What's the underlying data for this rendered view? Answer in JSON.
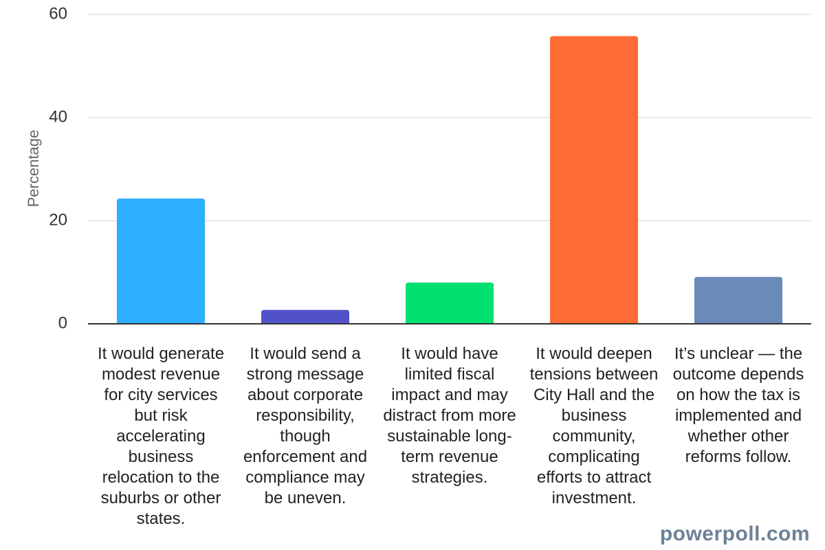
{
  "chart_data": {
    "type": "bar",
    "ylabel": "Percentage",
    "ylim": [
      0,
      60
    ],
    "yticks": [
      "0",
      "20",
      "40",
      "60"
    ],
    "grid": true,
    "categories": [
      "It would generate modest revenue for city services but risk accelerating business relocation to the suburbs or other states.",
      "It would send a strong message about corporate responsibility, though enforcement and compliance may be uneven.",
      "It would have limited fiscal impact and may distract from more sustainable long-term revenue strategies.",
      "It would deepen tensions between City Hall and the business community, complicating efforts to attract investment.",
      "It’s unclear — the outcome depends on how the tax is implemented and whether other reforms follow."
    ],
    "values": [
      24.3,
      2.7,
      8.0,
      55.8,
      9.1
    ],
    "colors": [
      "#2eaeff",
      "#5252c8",
      "#00e070",
      "#ff6b35",
      "#6a8aba"
    ]
  },
  "watermark": "powerpoll.com"
}
